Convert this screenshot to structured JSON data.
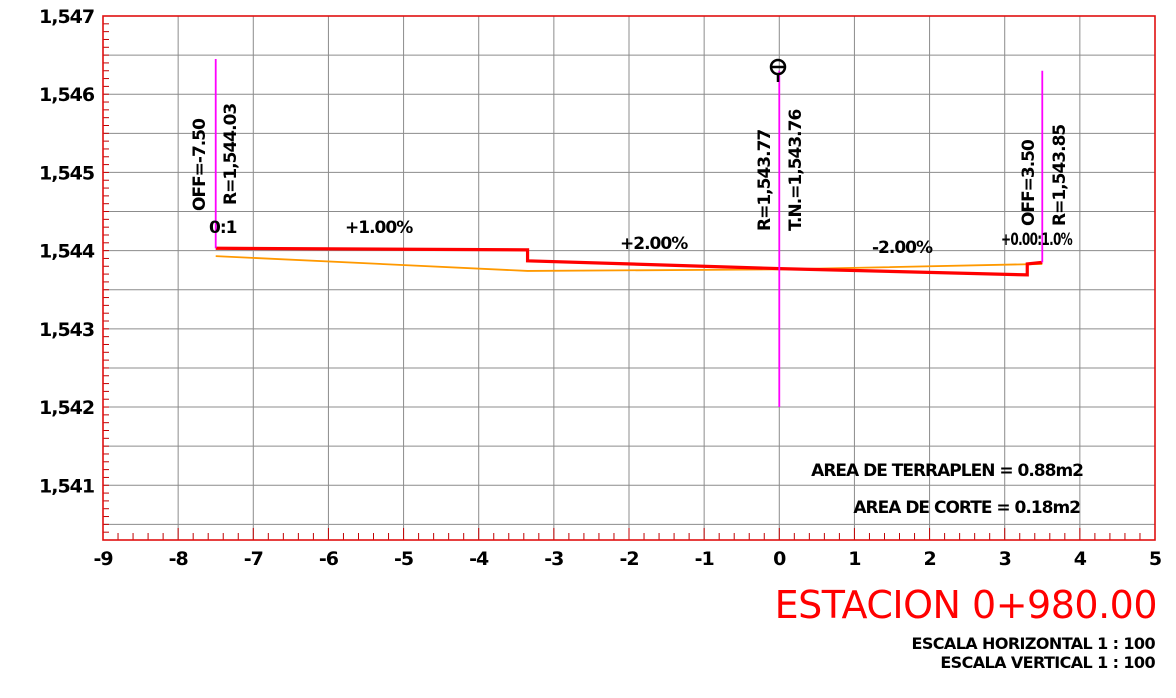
{
  "chart_data": {
    "type": "cross-section",
    "x_ticks": [
      "-9",
      "-8",
      "-7",
      "-6",
      "-5",
      "-4",
      "-3",
      "-2",
      "-1",
      "0",
      "1",
      "2",
      "3",
      "4",
      "5"
    ],
    "y_ticks": [
      "1,541",
      "1,542",
      "1,543",
      "1,544",
      "1,545",
      "1,546",
      "1,547"
    ],
    "xlim": [
      -9,
      5
    ],
    "ylim": [
      1540.3,
      1547
    ],
    "design_profile": [
      [
        -7.5,
        1544.03
      ],
      [
        -3.35,
        1544.01
      ],
      [
        -3.35,
        1543.87
      ],
      [
        0,
        1543.77
      ],
      [
        3.3,
        1543.69
      ],
      [
        3.3,
        1543.83
      ],
      [
        3.5,
        1543.85
      ]
    ],
    "ground_profile": [
      [
        -7.5,
        1543.93
      ],
      [
        -3.35,
        1543.74
      ],
      [
        0,
        1543.76
      ],
      [
        3.5,
        1543.83
      ]
    ],
    "vertical_markers": [
      {
        "x": -7.5,
        "y_top": 1546.45,
        "y_bottom": 1544.03
      },
      {
        "x": 0,
        "y_top": 1546.3,
        "y_bottom": 1542.0
      },
      {
        "x": 3.5,
        "y_top": 1546.3,
        "y_bottom": 1543.85
      }
    ],
    "colors": {
      "design": "#ff0000",
      "ground": "#ff9900",
      "markers": "#ff00ff",
      "frame": "#e01010",
      "grid": "#8c8c8c"
    }
  },
  "labels": {
    "left_off": "OFF=-7.50",
    "left_r": "R=1,544.03",
    "left_slope": "0:1",
    "slope_1": "+1.00%",
    "slope_2": "+2.00%",
    "slope_3": "-2.00%",
    "right_slope": "+0.00:1.0%",
    "center_r": "R=1,543.77",
    "center_tn": "T.N.=1,543.76",
    "right_off": "OFF=3.50",
    "right_r": "R=1,543.85",
    "area_fill": "AREA DE TERRAPLEN = 0.88m2",
    "area_cut": "AREA DE CORTE = 0.18m2"
  },
  "footer": {
    "station": "ESTACION 0+980.00",
    "scale_h": "ESCALA HORIZONTAL 1 : 100",
    "scale_v": "ESCALA VERTICAL 1 : 100"
  }
}
